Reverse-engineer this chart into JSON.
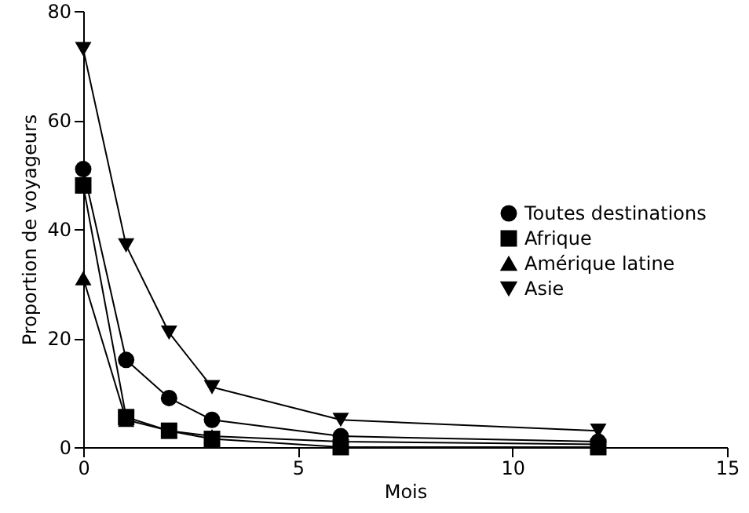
{
  "chart_data": {
    "type": "line",
    "xlabel": "Mois",
    "ylabel": "Proportion de voyageurs",
    "x": [
      0,
      1,
      2,
      3,
      6,
      12
    ],
    "series": [
      {
        "name": "Toutes destinations",
        "color": "#000000",
        "marker": "circle",
        "values": [
          51,
          16,
          9,
          5,
          2,
          1
        ]
      },
      {
        "name": "Afrique",
        "color": "#000000",
        "marker": "square",
        "values": [
          48,
          5.5,
          3,
          1.5,
          0,
          0
        ]
      },
      {
        "name": "Amérique latine",
        "color": "#000000",
        "marker": "triangle",
        "values": [
          31,
          5,
          3,
          2,
          1,
          0.5
        ]
      },
      {
        "name": "Asie",
        "color": "#000000",
        "marker": "triangle-down",
        "values": [
          73,
          37,
          21,
          11,
          5,
          3
        ]
      }
    ],
    "xlim": [
      0,
      15
    ],
    "xticks": [
      0,
      5,
      10,
      15
    ],
    "ylim": [
      0,
      80
    ],
    "yticks": [
      0,
      20,
      40,
      60,
      80
    ],
    "grid": false,
    "legend": "right"
  }
}
